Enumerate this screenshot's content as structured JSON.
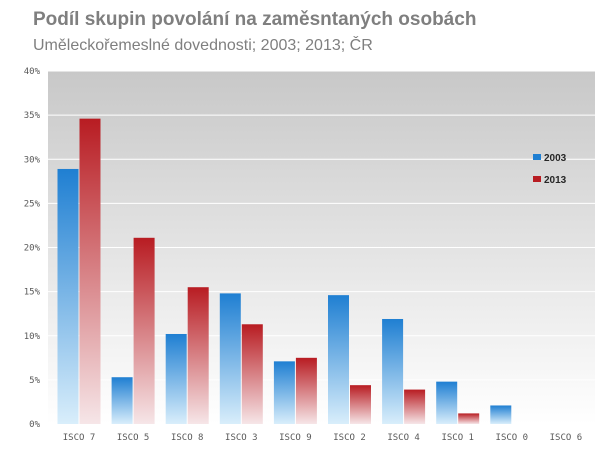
{
  "chart_data": {
    "type": "bar",
    "title": "Podíl skupin povolání na zaměsntaných osobách",
    "subtitle": "Uměleckořemeslné dovednosti; 2003; 2013; ČR",
    "categories": [
      "ISCO 7",
      "ISCO 5",
      "ISCO 8",
      "ISCO 3",
      "ISCO 9",
      "ISCO 2",
      "ISCO 4",
      "ISCO 1",
      "ISCO 0",
      "ISCO 6"
    ],
    "series": [
      {
        "name": "2003",
        "values": [
          28.9,
          5.3,
          10.2,
          14.8,
          7.1,
          14.6,
          11.9,
          4.8,
          2.1,
          0
        ]
      },
      {
        "name": "2013",
        "values": [
          34.6,
          21.1,
          15.5,
          11.3,
          7.5,
          4.4,
          3.9,
          1.2,
          0,
          0
        ]
      }
    ],
    "ylim": [
      0,
      40
    ],
    "yticks": [
      0,
      5,
      10,
      15,
      20,
      25,
      30,
      35,
      40
    ],
    "ytick_labels": [
      "0%",
      "5%",
      "10%",
      "15%",
      "20%",
      "25%",
      "30%",
      "35%",
      "40%"
    ],
    "xlabel": "",
    "ylabel": "",
    "grid": true,
    "legend_position": "right",
    "colors": {
      "s2003_top": "#1f7fd2",
      "s2003_bottom": "#d9eefb",
      "s2013_top": "#b81c22",
      "s2013_bottom": "#f6e6e8",
      "plot_top": "#c8c8c8",
      "plot_bottom": "#ffffff",
      "grid": "#ffffff",
      "axis_text": "#595959"
    }
  }
}
